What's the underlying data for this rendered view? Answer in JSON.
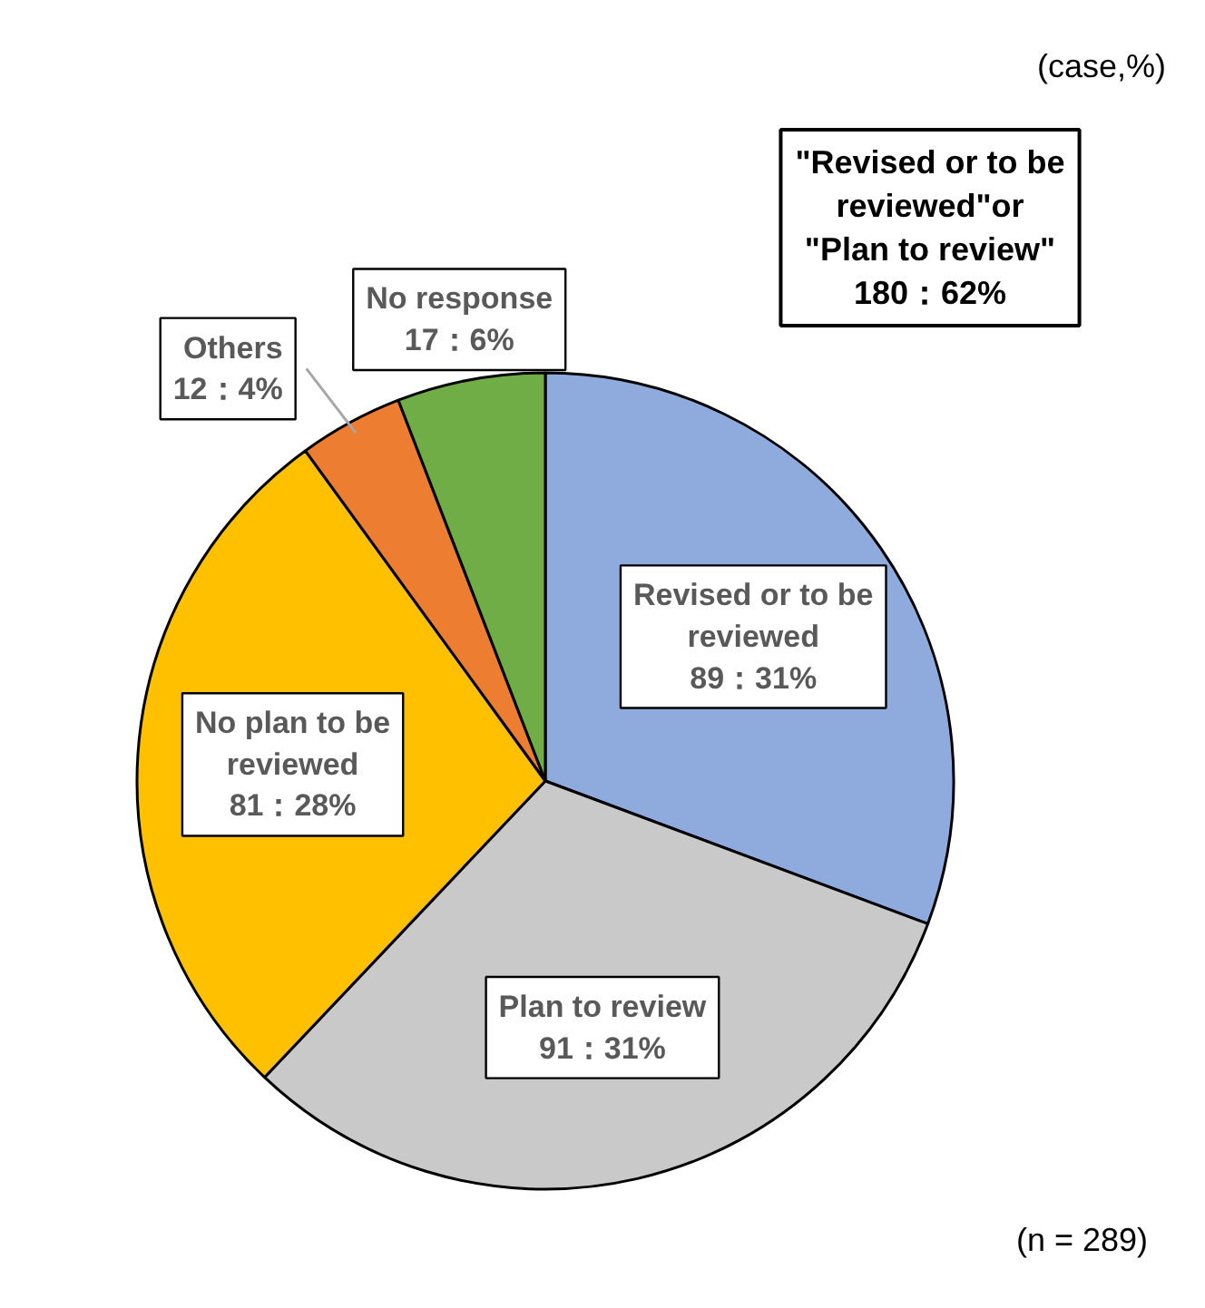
{
  "chart_data": {
    "type": "pie",
    "categories": [
      "Revised or to be\nreviewed",
      "Plan to review",
      "No plan to be\nreviewed",
      "Others",
      "No response"
    ],
    "values": [
      89,
      91,
      81,
      12,
      17
    ],
    "value_labels": [
      "89：31%",
      "91：31%",
      "81：28%",
      "12：4%",
      "17：6%"
    ],
    "colors": [
      "#8faadc",
      "#c9c9c9",
      "#ffc000",
      "#ed7d31",
      "#70ad47"
    ],
    "annotations": [
      "(case,%)",
      "\"Revised or to be\nreviewed\"or\n\"Plan to review\"\n180：62%",
      "(n = 289)"
    ]
  }
}
